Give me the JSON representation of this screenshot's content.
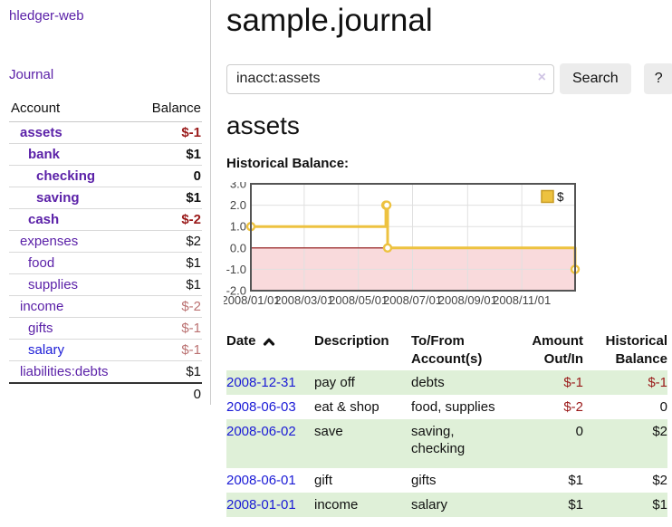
{
  "sidebar": {
    "brand": "hledger-web",
    "journal_link": "Journal",
    "accounts_table": {
      "account_header": "Account",
      "balance_header": "Balance",
      "rows": [
        {
          "name": "assets",
          "depth": 0,
          "balance": "$-1",
          "bold": true,
          "balance_tone": "strong-negative"
        },
        {
          "name": "bank",
          "depth": 1,
          "balance": "$1",
          "bold": true,
          "balance_tone": "normal"
        },
        {
          "name": "checking",
          "depth": 2,
          "balance": "0",
          "bold": true,
          "balance_tone": "normal"
        },
        {
          "name": "saving",
          "depth": 2,
          "balance": "$1",
          "bold": true,
          "balance_tone": "normal"
        },
        {
          "name": "cash",
          "depth": 1,
          "balance": "$-2",
          "bold": true,
          "balance_tone": "strong-negative"
        },
        {
          "name": "expenses",
          "depth": 0,
          "balance": "$2",
          "bold": false,
          "balance_tone": "normal"
        },
        {
          "name": "food",
          "depth": 1,
          "balance": "$1",
          "bold": false,
          "balance_tone": "normal"
        },
        {
          "name": "supplies",
          "depth": 1,
          "balance": "$1",
          "bold": false,
          "balance_tone": "normal"
        },
        {
          "name": "income",
          "depth": 0,
          "balance": "$-2",
          "bold": false,
          "balance_tone": "soft-negative"
        },
        {
          "name": "gifts",
          "depth": 1,
          "balance": "$-1",
          "bold": false,
          "balance_tone": "soft-negative"
        },
        {
          "name": "salary",
          "depth": 1,
          "balance": "$-1",
          "bold": false,
          "balance_tone": "soft-negative",
          "link_color": "blue"
        },
        {
          "name": "liabilities:debts",
          "depth": 0,
          "balance": "$1",
          "bold": false,
          "balance_tone": "normal"
        }
      ],
      "total": "0"
    }
  },
  "main": {
    "title": "sample.journal",
    "search": {
      "value": "inacct:assets",
      "clear_icon": "×",
      "button_label": "Search",
      "help_label": "?"
    },
    "account_heading": "assets"
  },
  "chart_data": {
    "type": "line",
    "title": "Historical Balance:",
    "step": true,
    "series": [
      {
        "name": "$",
        "color": "#edc240",
        "points": [
          [
            "2008-01-01",
            1
          ],
          [
            "2008-06-01",
            2
          ],
          [
            "2008-06-02",
            2
          ],
          [
            "2008-06-03",
            0
          ],
          [
            "2008-12-31",
            -1
          ]
        ]
      }
    ],
    "x_domain": [
      "2008-01-01",
      "2008-12-31"
    ],
    "x_ticks": [
      {
        "date": "2008-01-01",
        "label": "2008/01/01"
      },
      {
        "date": "2008-03-01",
        "label": "2008/03/01"
      },
      {
        "date": "2008-05-01",
        "label": "2008/05/01"
      },
      {
        "date": "2008-07-01",
        "label": "2008/07/01"
      },
      {
        "date": "2008-09-01",
        "label": "2008/09/01"
      },
      {
        "date": "2008-11-01",
        "label": "2008/11/01"
      }
    ],
    "ylim": [
      -2,
      3
    ],
    "y_ticks": [
      3,
      2,
      1,
      0,
      -1,
      -2
    ],
    "grid": true,
    "legend": {
      "position": "top-right",
      "label": "$"
    },
    "negative_region": {
      "from": 0,
      "to": -2,
      "fill": "#f9dadc",
      "zero_line_color": "#8f0f0f"
    },
    "colors": {
      "border": "#545454",
      "gridline": "#e0e0e0",
      "tick_text": "#444444"
    }
  },
  "transactions": {
    "headers": [
      {
        "line1": "Date",
        "line2": ""
      },
      {
        "line1": "Description",
        "line2": ""
      },
      {
        "line1": "To/From",
        "line2": "Account(s)"
      },
      {
        "line1": "Amount",
        "line2": "Out/In"
      },
      {
        "line1": "Historical",
        "line2": "Balance"
      }
    ],
    "rows": [
      {
        "date": "2008-12-31",
        "description": "pay off",
        "account_lines": [
          "debts"
        ],
        "amount": "$-1",
        "amount_negative": true,
        "balance": "$-1",
        "balance_negative": true
      },
      {
        "date": "2008-06-03",
        "description": "eat & shop",
        "account_lines": [
          "food, supplies"
        ],
        "amount": "$-2",
        "amount_negative": true,
        "balance": "0",
        "balance_negative": false
      },
      {
        "date": "2008-06-02",
        "description": "save",
        "account_lines": [
          "saving,",
          "checking"
        ],
        "amount": "0",
        "amount_negative": false,
        "balance": "$2",
        "balance_negative": false
      },
      {
        "date": "2008-06-01",
        "description": "gift",
        "account_lines": [
          "gifts"
        ],
        "amount": "$1",
        "amount_negative": false,
        "balance": "$2",
        "balance_negative": false
      },
      {
        "date": "2008-01-01",
        "description": "income",
        "account_lines": [
          "salary"
        ],
        "amount": "$1",
        "amount_negative": false,
        "balance": "$1",
        "balance_negative": false
      }
    ]
  },
  "colors": {
    "link_purple": "#5b21a8",
    "link_blue": "#1a1ad6",
    "negative_strong": "#9a1a1a",
    "negative_soft": "#bb7272",
    "row_stripe_green": "#dff0d8",
    "series_gold": "#edc240"
  }
}
